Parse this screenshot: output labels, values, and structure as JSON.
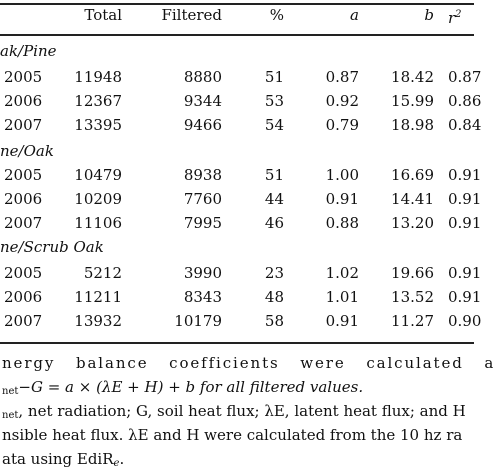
{
  "table": {
    "headers": [
      "",
      "Total",
      "Filtered",
      "%",
      "a",
      "b",
      "r²"
    ],
    "header_r_base": "r",
    "header_r_sup": "2",
    "groups": [
      {
        "label": "ak/Pine",
        "rows": [
          {
            "year": "2005",
            "total": "11948",
            "filtered": "8880",
            "pct": "51",
            "a": "0.87",
            "b": "18.42",
            "r2": "0.87"
          },
          {
            "year": "2006",
            "total": "12367",
            "filtered": "9344",
            "pct": "53",
            "a": "0.92",
            "b": "15.99",
            "r2": "0.86"
          },
          {
            "year": "2007",
            "total": "13395",
            "filtered": "9466",
            "pct": "54",
            "a": "0.79",
            "b": "18.98",
            "r2": "0.84"
          }
        ]
      },
      {
        "label": "ne/Oak",
        "rows": [
          {
            "year": "2005",
            "total": "10479",
            "filtered": "8938",
            "pct": "51",
            "a": "1.00",
            "b": "16.69",
            "r2": "0.91"
          },
          {
            "year": "2006",
            "total": "10209",
            "filtered": "7760",
            "pct": "44",
            "a": "0.91",
            "b": "14.41",
            "r2": "0.91"
          },
          {
            "year": "2007",
            "total": "11106",
            "filtered": "7995",
            "pct": "46",
            "a": "0.88",
            "b": "13.20",
            "r2": "0.91"
          }
        ]
      },
      {
        "label": "ne/Scrub Oak",
        "rows": [
          {
            "year": "2005",
            "total": "5212",
            "filtered": "3990",
            "pct": "23",
            "a": "1.02",
            "b": "19.66",
            "r2": "0.91"
          },
          {
            "year": "2006",
            "total": "11211",
            "filtered": "8343",
            "pct": "48",
            "a": "1.01",
            "b": "13.52",
            "r2": "0.91"
          },
          {
            "year": "2007",
            "total": "13932",
            "filtered": "10179",
            "pct": "58",
            "a": "0.91",
            "b": "11.27",
            "r2": "0.90"
          }
        ]
      }
    ]
  },
  "notes": {
    "line1": "nergy balance coefficients were calculated a",
    "line2_sub": "net",
    "line2_rest": "−G = a × (λE + H) + b for all filtered values.",
    "line3_sub": "net",
    "line3_rest": ", net radiation; G, soil heat flux; λE, latent heat flux; and H",
    "line4": "nsible heat flux. λE and H were calculated from the 10 hz ra",
    "line5_pre": "ata using EdiR",
    "line5_sub": "e",
    "line5_post": "."
  }
}
